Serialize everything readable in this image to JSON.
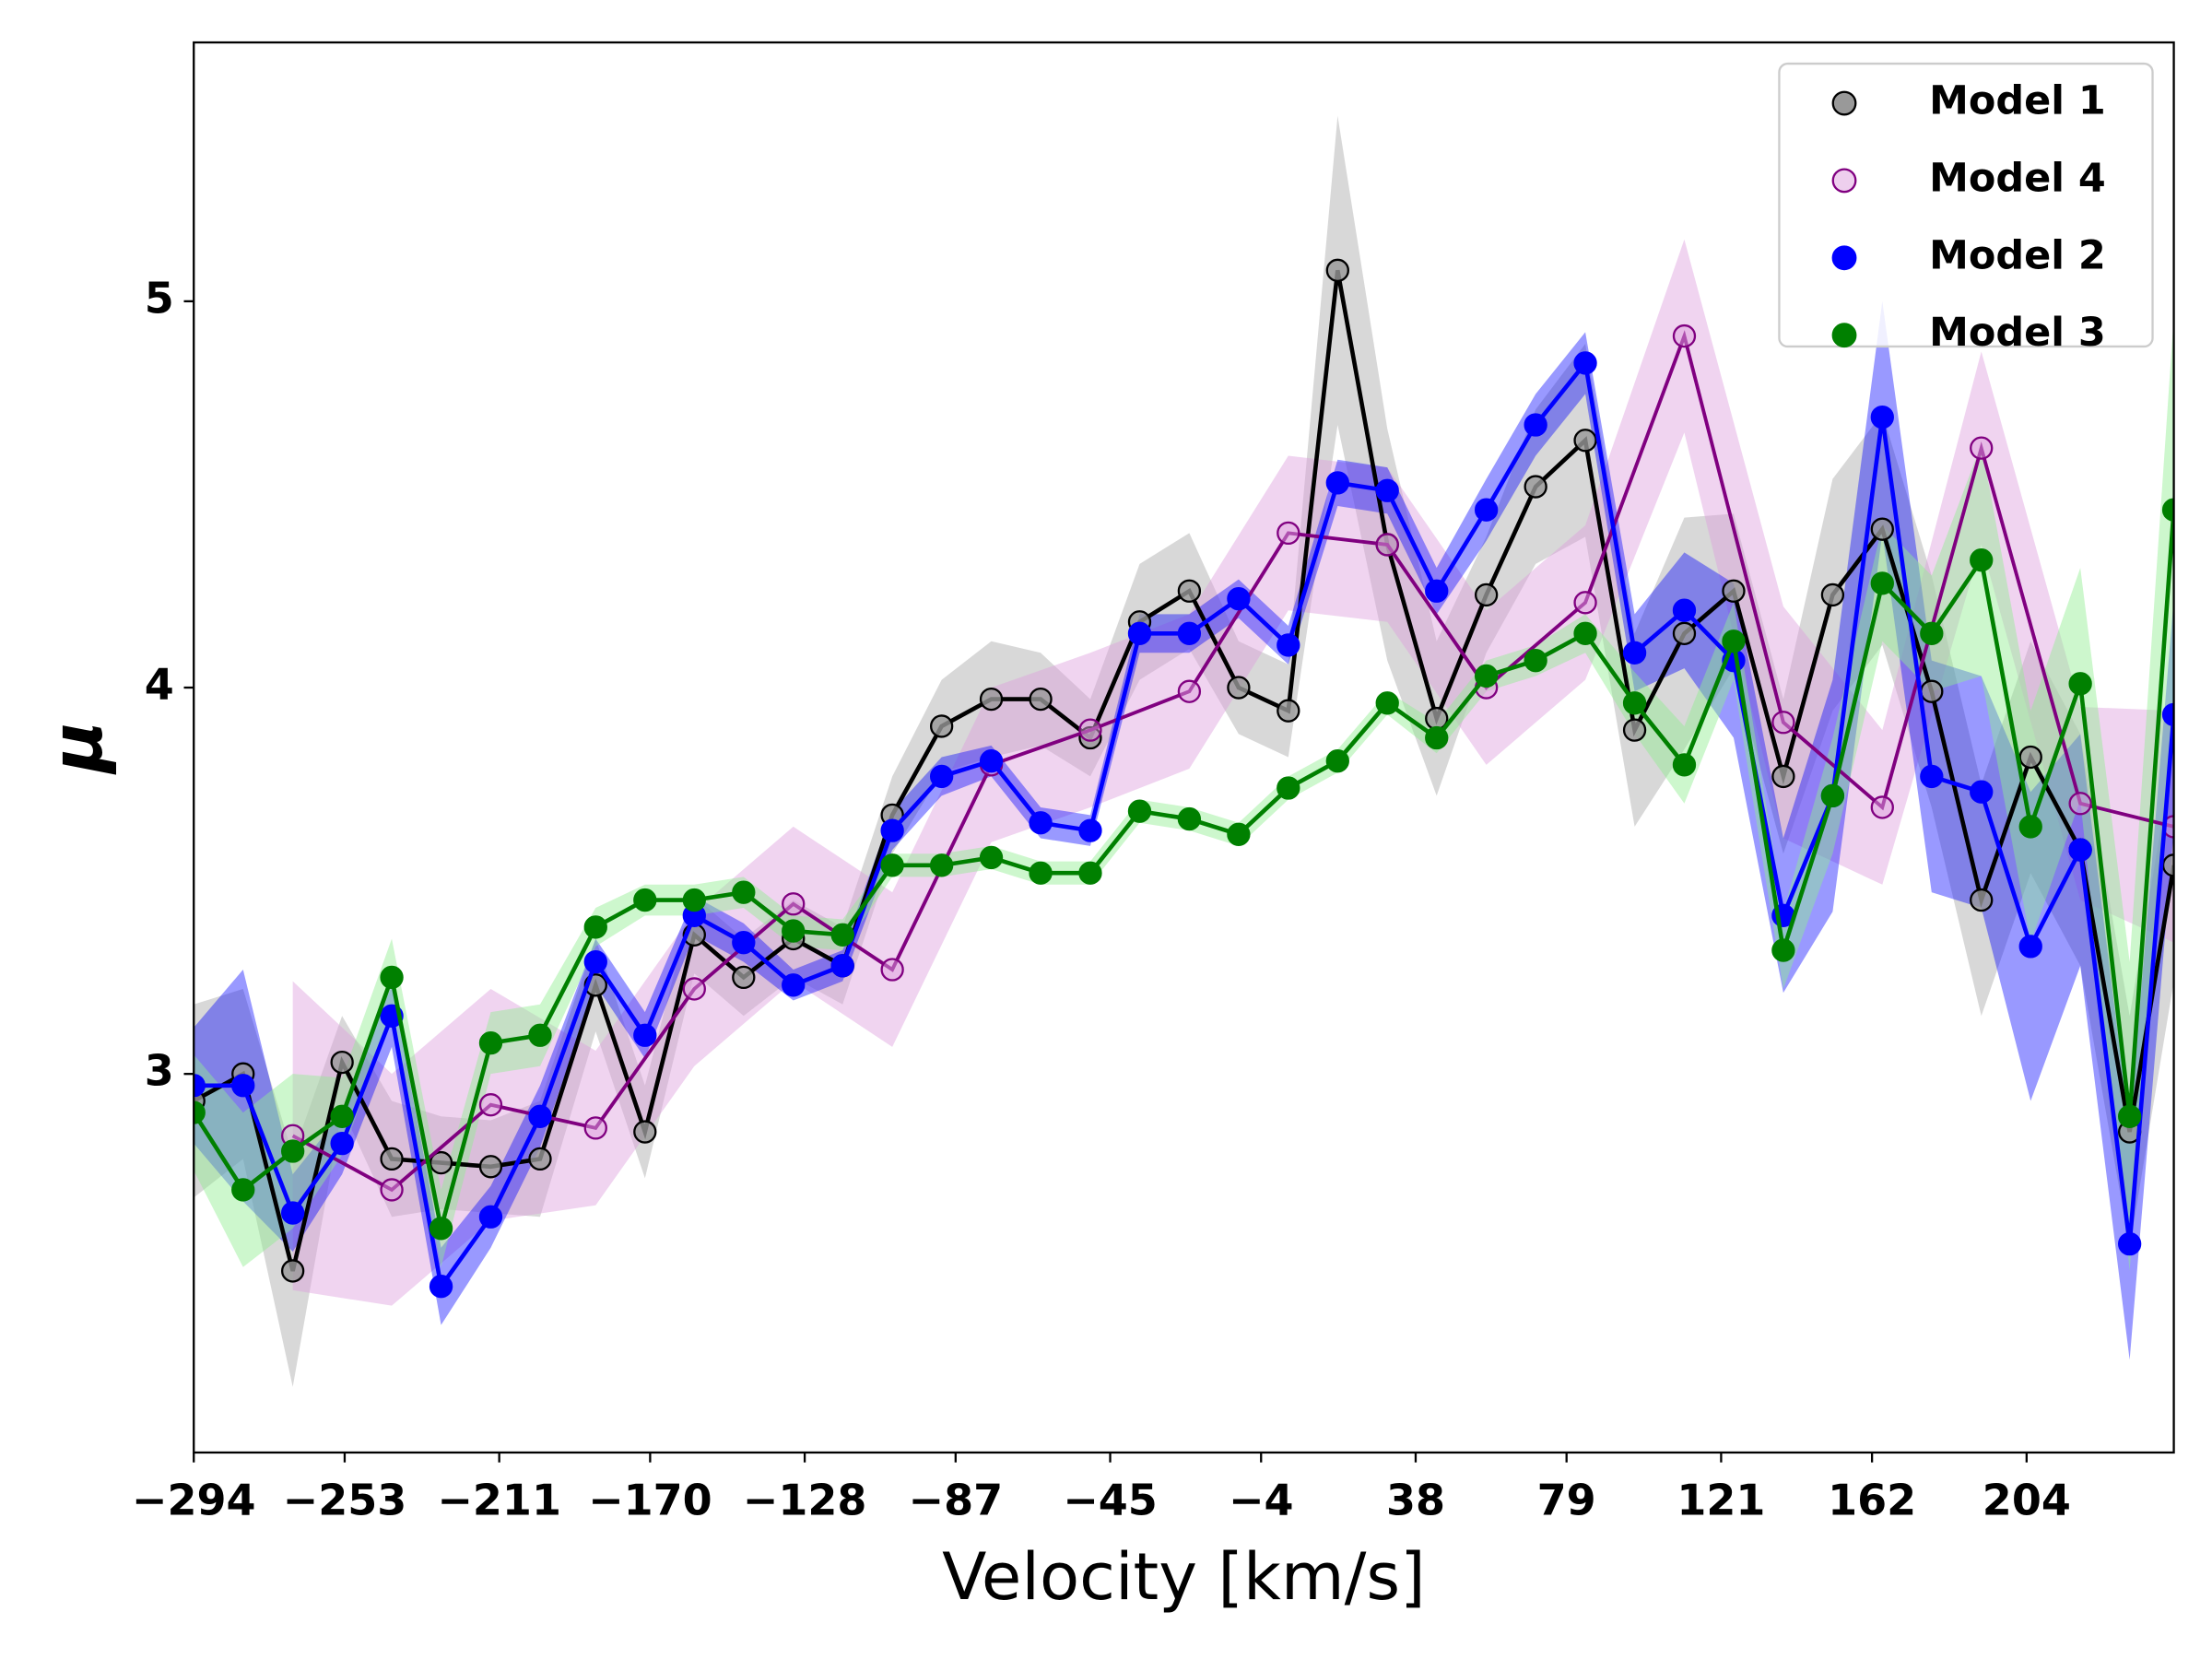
{
  "chart_data": {
    "type": "line",
    "xlabel": "Velocity [km/s]",
    "ylabel": "μ",
    "x": [
      -294,
      -280.6,
      -267.1,
      -253.7,
      -240.2,
      -226.8,
      -213.3,
      -199.9,
      -184.8,
      -171.4,
      -158.0,
      -144.6,
      -131.1,
      -117.7,
      -104.2,
      -90.8,
      -77.3,
      -63.9,
      -50.4,
      -37.0,
      -23.5,
      -10.1,
      3.4,
      16.8,
      30.3,
      43.7,
      57.2,
      70.6,
      84.1,
      97.5,
      111.0,
      124.4,
      137.9,
      151.3,
      164.8,
      178.2,
      191.7,
      205.1,
      218.6,
      232.0,
      244
    ],
    "xlim": [
      -294,
      244
    ],
    "xticks": [
      {
        "value": -294,
        "label": "−294"
      },
      {
        "value": -253,
        "label": "−253"
      },
      {
        "value": -211,
        "label": "−211"
      },
      {
        "value": -170,
        "label": "−170"
      },
      {
        "value": -128,
        "label": "−128"
      },
      {
        "value": -87,
        "label": "−87"
      },
      {
        "value": -45,
        "label": "−45"
      },
      {
        "value": -4,
        "label": "−4"
      },
      38,
      79,
      121,
      162,
      204
    ],
    "ylim": [
      2.02,
      5.67
    ],
    "yticks": [
      3,
      4,
      5
    ],
    "grid": false,
    "legend": "upper right",
    "series": [
      {
        "name": "Model 1",
        "color": "#000000",
        "marker_color": "#999999",
        "band_color": "#a9a9a9",
        "values": [
          2.93,
          3.0,
          2.49,
          3.03,
          2.78,
          2.77,
          2.76,
          2.78,
          3.23,
          2.85,
          3.36,
          3.25,
          3.35,
          3.28,
          3.67,
          3.9,
          3.97,
          3.97,
          3.87,
          4.17,
          4.25,
          4.0,
          3.94,
          5.08,
          4.37,
          3.92,
          4.24,
          4.52,
          4.64,
          3.89,
          4.14,
          4.25,
          3.77,
          4.24,
          4.41,
          3.99,
          3.45,
          3.82,
          3.58,
          2.85,
          3.54
        ],
        "errors": [
          0.25,
          0.22,
          0.3,
          0.12,
          0.15,
          0.12,
          0.12,
          0.15,
          0.12,
          0.12,
          0.1,
          0.1,
          0.1,
          0.1,
          0.1,
          0.12,
          0.15,
          0.12,
          0.1,
          0.15,
          0.15,
          0.12,
          0.12,
          0.4,
          0.3,
          0.2,
          0.15,
          0.2,
          0.25,
          0.25,
          0.3,
          0.2,
          0.2,
          0.3,
          0.3,
          0.3,
          0.3,
          0.3,
          0.3,
          0.3,
          0.3
        ]
      },
      {
        "name": "Model 4",
        "color": "#800080",
        "marker_color": "#dda0dd",
        "band_color": "#dda0dd",
        "x": [
          -267.1,
          -240.2,
          -213.3,
          -184.8,
          -158.0,
          -131.1,
          -104.2,
          -77.3,
          -50.4,
          -23.5,
          3.4,
          30.3,
          57.2,
          84.1,
          111.0,
          137.9,
          164.8,
          191.7,
          218.6,
          244
        ],
        "values": [
          2.84,
          2.7,
          2.92,
          2.86,
          3.22,
          3.44,
          3.27,
          3.8,
          3.89,
          3.99,
          4.4,
          4.37,
          4.0,
          4.22,
          4.91,
          3.91,
          3.69,
          4.62,
          3.7,
          3.64
        ],
        "errors": [
          0.4,
          0.3,
          0.3,
          0.2,
          0.2,
          0.2,
          0.2,
          0.2,
          0.2,
          0.2,
          0.2,
          0.2,
          0.2,
          0.2,
          0.25,
          0.3,
          0.2,
          0.25,
          0.25,
          0.3
        ]
      },
      {
        "name": "Model 2",
        "color": "#0000ff",
        "marker_color": "#0000ff",
        "band_color": "#0000ff",
        "values": [
          2.97,
          2.97,
          2.64,
          2.82,
          3.15,
          2.45,
          2.63,
          2.89,
          3.29,
          3.1,
          3.41,
          3.34,
          3.23,
          3.28,
          3.63,
          3.77,
          3.81,
          3.65,
          3.63,
          4.14,
          4.14,
          4.23,
          4.11,
          4.53,
          4.51,
          4.25,
          4.46,
          4.68,
          4.84,
          4.09,
          4.2,
          4.07,
          3.41,
          3.72,
          4.7,
          3.77,
          3.73,
          3.33,
          3.58,
          2.56,
          3.93
        ],
        "errors": [
          0.15,
          0.3,
          0.1,
          0.08,
          0.08,
          0.1,
          0.08,
          0.08,
          0.06,
          0.06,
          0.05,
          0.05,
          0.04,
          0.04,
          0.05,
          0.05,
          0.04,
          0.04,
          0.04,
          0.05,
          0.05,
          0.05,
          0.05,
          0.06,
          0.06,
          0.06,
          0.08,
          0.08,
          0.08,
          0.1,
          0.15,
          0.2,
          0.2,
          0.3,
          0.3,
          0.3,
          0.3,
          0.4,
          0.3,
          0.3,
          0.3
        ]
      },
      {
        "name": "Model 3",
        "color": "#008000",
        "marker_color": "#008000",
        "band_color": "#90ee90",
        "values": [
          2.9,
          2.7,
          2.8,
          2.89,
          3.25,
          2.6,
          3.08,
          3.1,
          3.38,
          3.45,
          3.45,
          3.47,
          3.37,
          3.36,
          3.54,
          3.54,
          3.56,
          3.52,
          3.52,
          3.68,
          3.66,
          3.62,
          3.74,
          3.81,
          3.96,
          3.87,
          4.03,
          4.07,
          4.14,
          3.96,
          3.8,
          4.12,
          3.32,
          3.72,
          4.27,
          4.14,
          4.33,
          3.64,
          4.01,
          2.89,
          4.46
        ],
        "errors": [
          0.15,
          0.2,
          0.2,
          0.1,
          0.1,
          0.1,
          0.08,
          0.08,
          0.05,
          0.04,
          0.04,
          0.04,
          0.04,
          0.04,
          0.03,
          0.03,
          0.03,
          0.03,
          0.03,
          0.03,
          0.03,
          0.03,
          0.03,
          0.03,
          0.03,
          0.04,
          0.04,
          0.04,
          0.05,
          0.08,
          0.1,
          0.1,
          0.1,
          0.15,
          0.15,
          0.15,
          0.3,
          0.3,
          0.3,
          0.4,
          0.5
        ]
      }
    ]
  }
}
